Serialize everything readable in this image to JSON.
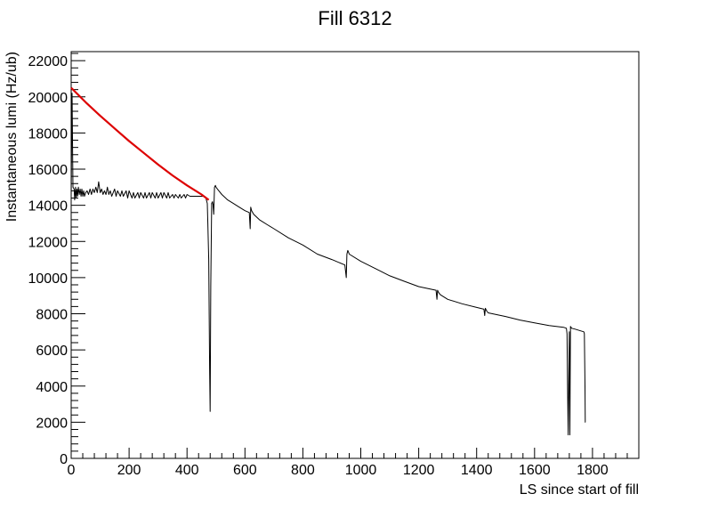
{
  "colors": {
    "background": "#ffffff",
    "axis": "#000000",
    "measured_series": "#000000",
    "fit_series": "#dd0000"
  },
  "chart_data": {
    "type": "line",
    "title": "Fill 6312",
    "xlabel": "LS since start of fill",
    "ylabel": "Instantaneous lumi (Hz/ub)",
    "xlim": [
      0,
      1960
    ],
    "ylim": [
      0,
      22500
    ],
    "x_ticks": [
      0,
      200,
      400,
      600,
      800,
      1000,
      1200,
      1400,
      1600,
      1800
    ],
    "x_tick_labels": [
      "0",
      "200",
      "400",
      "600",
      "800",
      "1000",
      "1200",
      "1400",
      "1600",
      "1800"
    ],
    "y_ticks": [
      0,
      2000,
      4000,
      6000,
      8000,
      10000,
      12000,
      14000,
      16000,
      18000,
      20000,
      22000
    ],
    "y_tick_labels": [
      "0",
      "2000",
      "4000",
      "6000",
      "8000",
      "10000",
      "12000",
      "14000",
      "16000",
      "18000",
      "20000",
      "22000"
    ],
    "grid": false,
    "legend": "none",
    "series": [
      {
        "color": "#000000",
        "x": [
          0,
          3,
          6,
          10,
          12,
          15,
          17,
          20,
          22,
          25,
          28,
          31,
          34,
          37,
          40,
          43,
          46,
          50,
          55,
          60,
          65,
          70,
          75,
          80,
          85,
          90,
          95,
          100,
          105,
          110,
          115,
          120,
          125,
          130,
          135,
          140,
          150,
          155,
          160,
          170,
          175,
          180,
          190,
          195,
          200,
          210,
          215,
          220,
          230,
          235,
          240,
          250,
          255,
          260,
          270,
          275,
          280,
          290,
          295,
          300,
          310,
          315,
          320,
          330,
          335,
          340,
          350,
          355,
          360,
          370,
          375,
          380,
          390,
          395,
          400,
          410,
          420,
          430,
          440,
          450,
          460,
          465,
          470,
          472,
          475,
          478,
          480,
          482,
          485,
          488,
          490,
          492,
          495,
          498,
          500,
          505,
          510,
          520,
          540,
          560,
          580,
          600,
          615,
          618,
          620,
          623,
          625,
          630,
          650,
          680,
          700,
          750,
          800,
          850,
          900,
          945,
          950,
          952,
          955,
          958,
          960,
          1000,
          1050,
          1100,
          1150,
          1200,
          1260,
          1263,
          1265,
          1268,
          1270,
          1275,
          1300,
          1350,
          1400,
          1425,
          1428,
          1430,
          1433,
          1435,
          1440,
          1500,
          1550,
          1600,
          1650,
          1700,
          1710,
          1712,
          1714,
          1716,
          1718,
          1720,
          1722,
          1724,
          1726,
          1728,
          1740,
          1760,
          1770,
          1772,
          1774,
          1775,
          1776
        ],
        "values": [
          14500,
          20200,
          15000,
          14900,
          14300,
          15000,
          14400,
          14900,
          14500,
          15000,
          14600,
          14900,
          14500,
          14900,
          14500,
          14800,
          14500,
          14700,
          14800,
          14600,
          14900,
          14600,
          14900,
          14700,
          15000,
          14700,
          15300,
          14700,
          14900,
          14600,
          14800,
          14600,
          15000,
          14600,
          14800,
          14500,
          14900,
          14500,
          14800,
          14500,
          14800,
          14500,
          14800,
          14400,
          14800,
          14400,
          14700,
          14400,
          14700,
          14400,
          14700,
          14400,
          14700,
          14400,
          14700,
          14400,
          14700,
          14400,
          14700,
          14400,
          14700,
          14400,
          14700,
          14400,
          14700,
          14400,
          14600,
          14400,
          14600,
          14400,
          14600,
          14400,
          14600,
          14400,
          14600,
          14500,
          14500,
          14500,
          14500,
          14500,
          14500,
          14400,
          14100,
          13000,
          11000,
          5000,
          2600,
          9500,
          14100,
          14200,
          14000,
          13500,
          15000,
          15100,
          15000,
          14900,
          14800,
          14600,
          14300,
          14100,
          13900,
          13700,
          13600,
          12700,
          13900,
          13700,
          13650,
          13500,
          13200,
          12900,
          12700,
          12200,
          11800,
          11300,
          11000,
          10700,
          10000,
          11300,
          11500,
          11400,
          11300,
          10900,
          10500,
          10100,
          9800,
          9500,
          9300,
          8800,
          9300,
          9200,
          9150,
          9050,
          8800,
          8550,
          8350,
          8250,
          7900,
          8300,
          8200,
          8150,
          8050,
          7850,
          7650,
          7500,
          7350,
          7250,
          7200,
          6900,
          4000,
          1300,
          4000,
          7000,
          1300,
          7300,
          7250,
          7200,
          7150,
          7050,
          7000,
          6900,
          4000,
          2000,
          2000
        ]
      },
      {
        "color": "#dd0000",
        "x": [
          0,
          50,
          100,
          150,
          200,
          250,
          300,
          350,
          400,
          450,
          475
        ],
        "values": [
          20500,
          19700,
          18950,
          18250,
          17550,
          16900,
          16250,
          15650,
          15100,
          14600,
          14300
        ]
      }
    ]
  }
}
